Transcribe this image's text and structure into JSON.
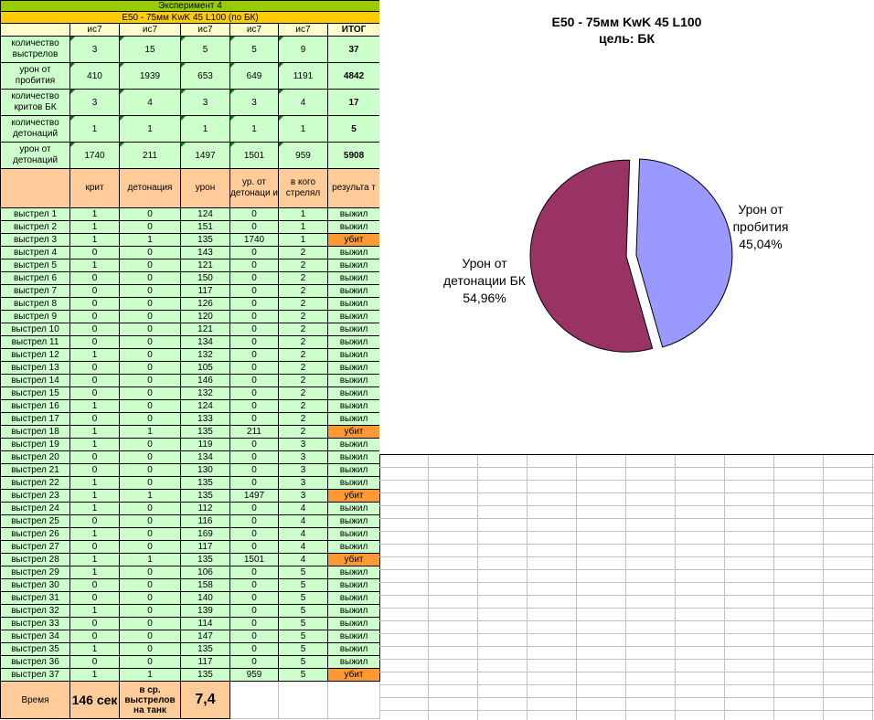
{
  "sheet": {
    "title": "Эксперимент 4",
    "subtitle": "E50 - 75мм KwK 45 L100 (по БК)",
    "columns": [
      "ис7",
      "ис7",
      "ис7",
      "ис7",
      "ис7",
      "ИТОГ"
    ],
    "summary": [
      {
        "label": "количество выстрелов",
        "values": [
          "3",
          "15",
          "5",
          "5",
          "9"
        ],
        "total": "37"
      },
      {
        "label": "урон от пробития",
        "values": [
          "410",
          "1939",
          "653",
          "649",
          "1191"
        ],
        "total": "4842"
      },
      {
        "label": "количество критов БК",
        "values": [
          "3",
          "4",
          "3",
          "3",
          "4"
        ],
        "total": "17"
      },
      {
        "label": "количество детонаций",
        "values": [
          "1",
          "1",
          "1",
          "1",
          "1"
        ],
        "total": "5"
      },
      {
        "label": "урон от детонаций",
        "values": [
          "1740",
          "211",
          "1497",
          "1501",
          "959"
        ],
        "total": "5908"
      }
    ],
    "shot_headers": [
      "крит",
      "детонация",
      "урон",
      "ур. от детонаци и",
      "в кого стрелял",
      "результа т"
    ],
    "shots": [
      {
        "name": "выстрел 1",
        "krit": "1",
        "det": "0",
        "dmg": "124",
        "detdmg": "0",
        "target": "1",
        "result": "выжил"
      },
      {
        "name": "выстрел 2",
        "krit": "1",
        "det": "0",
        "dmg": "151",
        "detdmg": "0",
        "target": "1",
        "result": "выжил"
      },
      {
        "name": "выстрел 3",
        "krit": "1",
        "det": "1",
        "dmg": "135",
        "detdmg": "1740",
        "target": "1",
        "result": "убит"
      },
      {
        "name": "выстрел 4",
        "krit": "0",
        "det": "0",
        "dmg": "143",
        "detdmg": "0",
        "target": "2",
        "result": "выжил"
      },
      {
        "name": "выстрел 5",
        "krit": "1",
        "det": "0",
        "dmg": "121",
        "detdmg": "0",
        "target": "2",
        "result": "выжил"
      },
      {
        "name": "выстрел 6",
        "krit": "0",
        "det": "0",
        "dmg": "150",
        "detdmg": "0",
        "target": "2",
        "result": "выжил"
      },
      {
        "name": "выстрел 7",
        "krit": "0",
        "det": "0",
        "dmg": "117",
        "detdmg": "0",
        "target": "2",
        "result": "выжил"
      },
      {
        "name": "выстрел 8",
        "krit": "0",
        "det": "0",
        "dmg": "126",
        "detdmg": "0",
        "target": "2",
        "result": "выжил"
      },
      {
        "name": "выстрел 9",
        "krit": "0",
        "det": "0",
        "dmg": "120",
        "detdmg": "0",
        "target": "2",
        "result": "выжил"
      },
      {
        "name": "выстрел 10",
        "krit": "0",
        "det": "0",
        "dmg": "121",
        "detdmg": "0",
        "target": "2",
        "result": "выжил"
      },
      {
        "name": "выстрел 11",
        "krit": "0",
        "det": "0",
        "dmg": "134",
        "detdmg": "0",
        "target": "2",
        "result": "выжил"
      },
      {
        "name": "выстрел 12",
        "krit": "1",
        "det": "0",
        "dmg": "132",
        "detdmg": "0",
        "target": "2",
        "result": "выжил"
      },
      {
        "name": "выстрел 13",
        "krit": "0",
        "det": "0",
        "dmg": "105",
        "detdmg": "0",
        "target": "2",
        "result": "выжил"
      },
      {
        "name": "выстрел 14",
        "krit": "0",
        "det": "0",
        "dmg": "146",
        "detdmg": "0",
        "target": "2",
        "result": "выжил"
      },
      {
        "name": "выстрел 15",
        "krit": "0",
        "det": "0",
        "dmg": "132",
        "detdmg": "0",
        "target": "2",
        "result": "выжил"
      },
      {
        "name": "выстрел 16",
        "krit": "1",
        "det": "0",
        "dmg": "124",
        "detdmg": "0",
        "target": "2",
        "result": "выжил"
      },
      {
        "name": "выстрел 17",
        "krit": "0",
        "det": "0",
        "dmg": "133",
        "detdmg": "0",
        "target": "2",
        "result": "выжил"
      },
      {
        "name": "выстрел 18",
        "krit": "1",
        "det": "1",
        "dmg": "135",
        "detdmg": "211",
        "target": "2",
        "result": "убит"
      },
      {
        "name": "выстрел 19",
        "krit": "1",
        "det": "0",
        "dmg": "119",
        "detdmg": "0",
        "target": "3",
        "result": "выжил"
      },
      {
        "name": "выстрел 20",
        "krit": "0",
        "det": "0",
        "dmg": "134",
        "detdmg": "0",
        "target": "3",
        "result": "выжил"
      },
      {
        "name": "выстрел 21",
        "krit": "0",
        "det": "0",
        "dmg": "130",
        "detdmg": "0",
        "target": "3",
        "result": "выжил"
      },
      {
        "name": "выстрел 22",
        "krit": "1",
        "det": "0",
        "dmg": "135",
        "detdmg": "0",
        "target": "3",
        "result": "выжил"
      },
      {
        "name": "выстрел 23",
        "krit": "1",
        "det": "1",
        "dmg": "135",
        "detdmg": "1497",
        "target": "3",
        "result": "убит"
      },
      {
        "name": "выстрел 24",
        "krit": "1",
        "det": "0",
        "dmg": "112",
        "detdmg": "0",
        "target": "4",
        "result": "выжил"
      },
      {
        "name": "выстрел 25",
        "krit": "0",
        "det": "0",
        "dmg": "116",
        "detdmg": "0",
        "target": "4",
        "result": "выжил"
      },
      {
        "name": "выстрел 26",
        "krit": "1",
        "det": "0",
        "dmg": "169",
        "detdmg": "0",
        "target": "4",
        "result": "выжил"
      },
      {
        "name": "выстрел 27",
        "krit": "0",
        "det": "0",
        "dmg": "117",
        "detdmg": "0",
        "target": "4",
        "result": "выжил"
      },
      {
        "name": "выстрел 28",
        "krit": "1",
        "det": "1",
        "dmg": "135",
        "detdmg": "1501",
        "target": "4",
        "result": "убит"
      },
      {
        "name": "выстрел 29",
        "krit": "1",
        "det": "0",
        "dmg": "106",
        "detdmg": "0",
        "target": "5",
        "result": "выжил"
      },
      {
        "name": "выстрел 30",
        "krit": "0",
        "det": "0",
        "dmg": "158",
        "detdmg": "0",
        "target": "5",
        "result": "выжил"
      },
      {
        "name": "выстрел 31",
        "krit": "0",
        "det": "0",
        "dmg": "140",
        "detdmg": "0",
        "target": "5",
        "result": "выжил"
      },
      {
        "name": "выстрел 32",
        "krit": "1",
        "det": "0",
        "dmg": "139",
        "detdmg": "0",
        "target": "5",
        "result": "выжил"
      },
      {
        "name": "выстрел 33",
        "krit": "0",
        "det": "0",
        "dmg": "114",
        "detdmg": "0",
        "target": "5",
        "result": "выжил"
      },
      {
        "name": "выстрел 34",
        "krit": "0",
        "det": "0",
        "dmg": "147",
        "detdmg": "0",
        "target": "5",
        "result": "выжил"
      },
      {
        "name": "выстрел 35",
        "krit": "1",
        "det": "0",
        "dmg": "135",
        "detdmg": "0",
        "target": "5",
        "result": "выжил"
      },
      {
        "name": "выстрел 36",
        "krit": "0",
        "det": "0",
        "dmg": "117",
        "detdmg": "0",
        "target": "5",
        "result": "выжил"
      },
      {
        "name": "выстрел 37",
        "krit": "1",
        "det": "1",
        "dmg": "135",
        "detdmg": "959",
        "target": "5",
        "result": "убит"
      }
    ],
    "footer": {
      "time_label": "Время",
      "time_value": "146 сек",
      "avg_label": "в ср. выстрелов на танк",
      "avg_value": "7,4"
    }
  },
  "colors": {
    "title_bar": "#99cc00",
    "subtitle_bar": "#ffcc00",
    "header": "#ffffcc",
    "cell_green": "#ccffcc",
    "cell_peach": "#ffcc99",
    "killed": "#ff9933"
  },
  "chart_data": {
    "type": "pie",
    "title": "E50 - 75мм KwK 45 L100",
    "subtitle": "цель: БК",
    "categories": [
      "Урон от пробития",
      "Урон от детонации БК"
    ],
    "values": [
      4842,
      5908
    ],
    "percent_labels": [
      "45,04%",
      "54,96%"
    ],
    "colors": [
      "#9999ff",
      "#993366"
    ],
    "exploded": true
  }
}
